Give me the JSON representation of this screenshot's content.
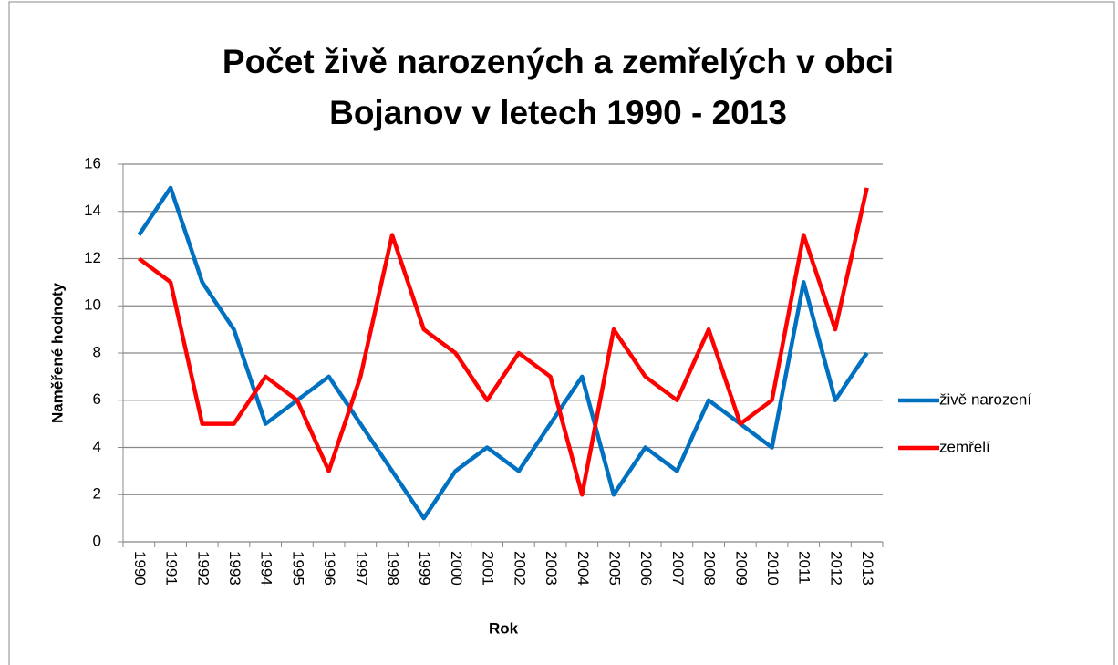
{
  "chart_data": {
    "type": "line",
    "title": [
      "Počet živě narozených a zemřelých v obci",
      "Bojanov v letech 1990 - 2013"
    ],
    "x_label": "Rok",
    "y_label": "Naměřené hodnoty",
    "categories": [
      "1990",
      "1991",
      "1992",
      "1993",
      "1994",
      "1995",
      "1996",
      "1997",
      "1998",
      "1999",
      "2000",
      "2001",
      "2002",
      "2003",
      "2004",
      "2005",
      "2006",
      "2007",
      "2008",
      "2009",
      "2010",
      "2011",
      "2012",
      "2013"
    ],
    "series": [
      {
        "name": "živě narození",
        "color": "#0070c0",
        "values": [
          13,
          15,
          11,
          9,
          5,
          6,
          7,
          5,
          3,
          1,
          3,
          4,
          3,
          5,
          7,
          2,
          4,
          3,
          6,
          5,
          4,
          11,
          6,
          8
        ]
      },
      {
        "name": "zemřelí",
        "color": "#ff0000",
        "values": [
          12,
          11,
          5,
          5,
          7,
          6,
          3,
          7,
          13,
          9,
          8,
          6,
          8,
          7,
          2,
          9,
          7,
          6,
          9,
          5,
          6,
          13,
          9,
          15
        ]
      }
    ],
    "ylim": [
      0,
      16
    ],
    "yticks": [
      0,
      2,
      4,
      6,
      8,
      10,
      12,
      14,
      16
    ],
    "grid": true,
    "legend": "right"
  }
}
